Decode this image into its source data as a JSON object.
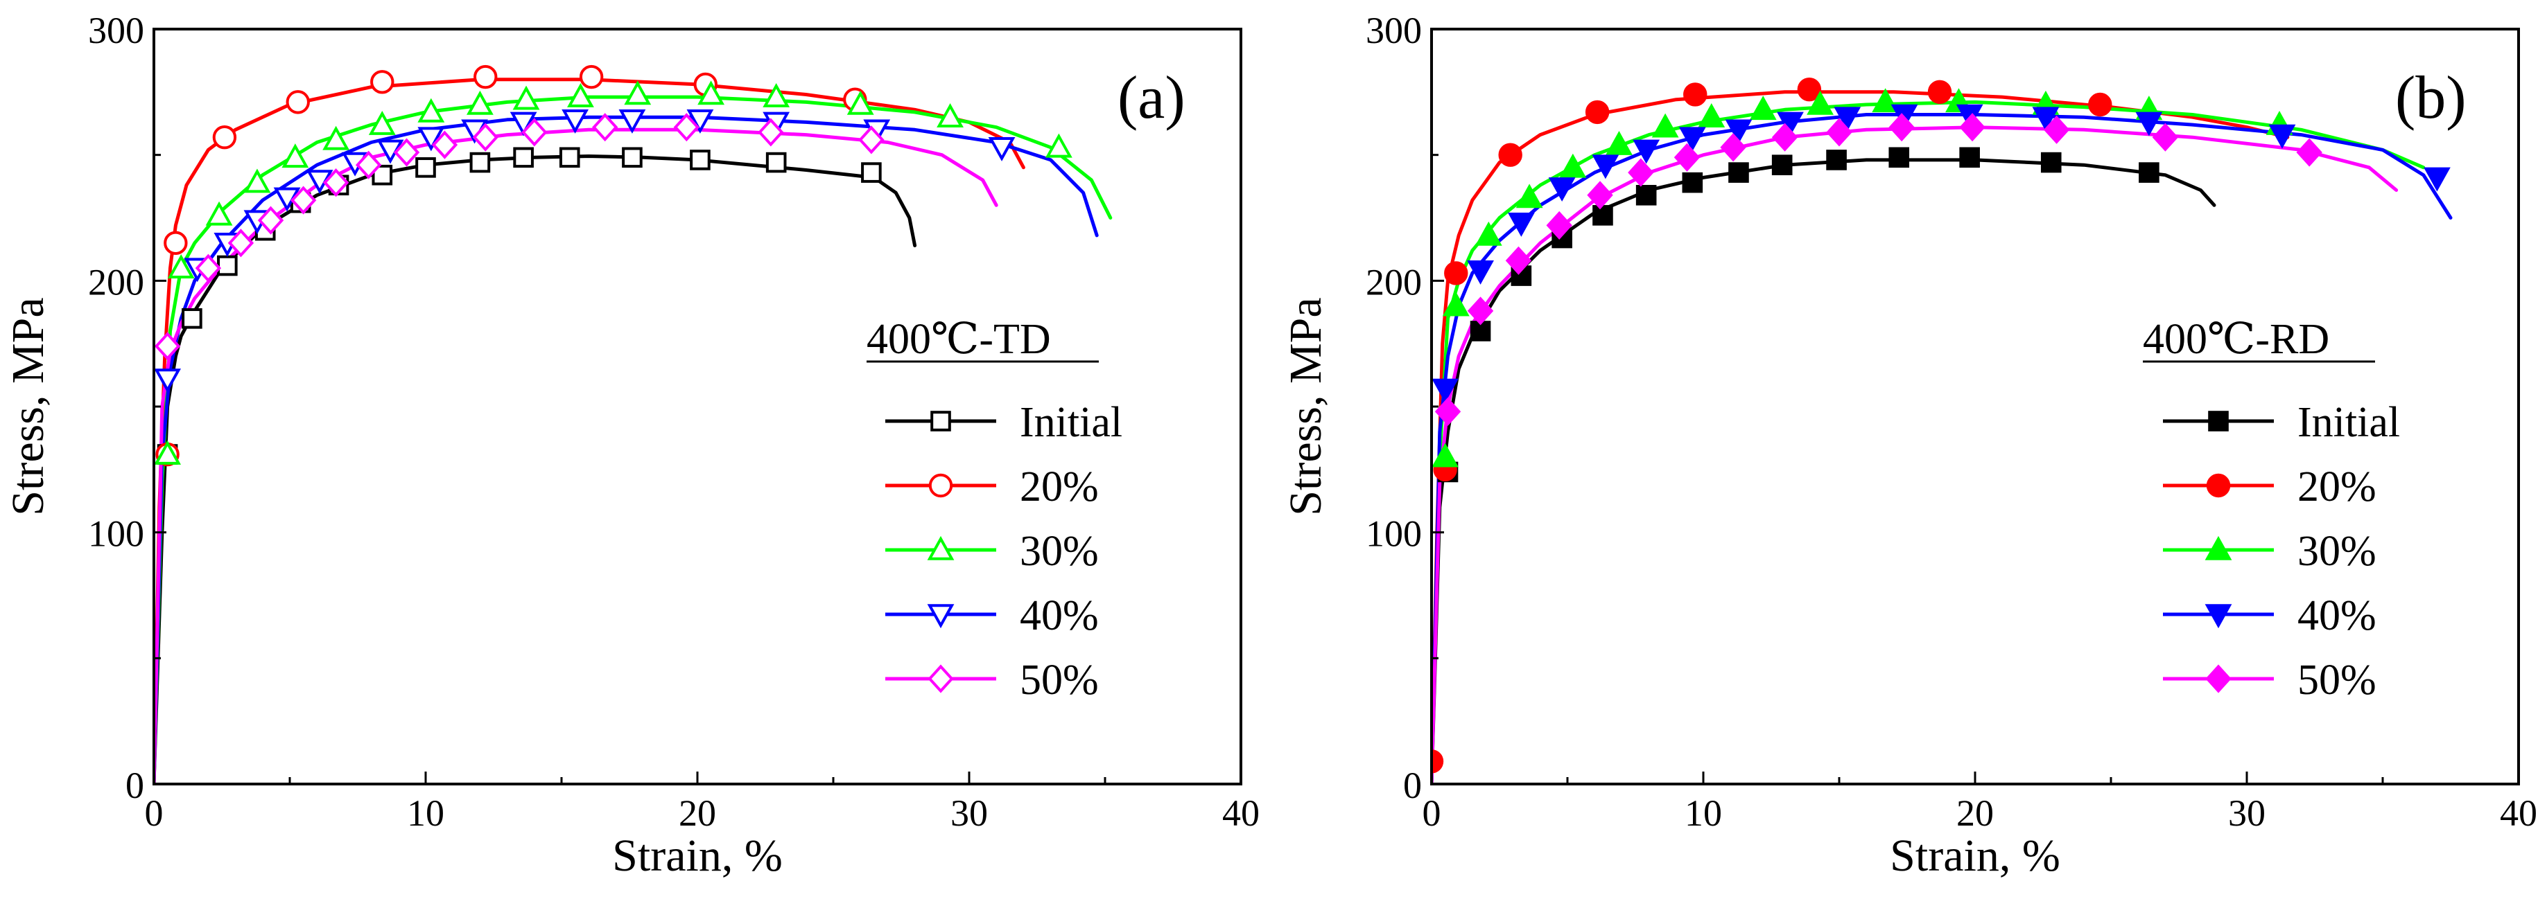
{
  "chart_data": [
    {
      "type": "line",
      "panel_label": "(a)",
      "xlabel": "Strain, %",
      "ylabel": "Stress, MPa",
      "xlim": [
        0,
        40
      ],
      "ylim": [
        0,
        300
      ],
      "x_ticks": [
        "0",
        "10",
        "20",
        "30",
        "40"
      ],
      "y_ticks": [
        "0",
        "100",
        "200",
        "300"
      ],
      "legend_title": "400℃-TD",
      "legend_position": "center-right",
      "series": [
        {
          "name": "Initial",
          "color": "#000000",
          "marker": "square",
          "filled": false,
          "x": [
            0,
            0.3,
            0.5,
            0.8,
            1.0,
            1.5,
            2.5,
            4,
            6,
            8,
            10,
            12,
            14,
            16,
            18,
            20,
            22,
            24,
            26.5,
            27.3,
            27.8,
            28.0
          ],
          "y": [
            0,
            100,
            150,
            170,
            178,
            188,
            205,
            221,
            234,
            242,
            246,
            248,
            249,
            249.5,
            249,
            248,
            246,
            244,
            241,
            235,
            225,
            214
          ],
          "marker_x": [
            0.5,
            1.4,
            2.7,
            4.1,
            5.4,
            6.8,
            8.4,
            10.0,
            12.0,
            13.6,
            15.3,
            17.6,
            20.1,
            22.9,
            26.4
          ],
          "marker_y": [
            131,
            185,
            206,
            220,
            231,
            238,
            242,
            245,
            247,
            249,
            249,
            249,
            248,
            247,
            243
          ]
        },
        {
          "name": "20%",
          "color": "#ff0000",
          "marker": "circle",
          "filled": false,
          "x": [
            0,
            0.2,
            0.4,
            0.6,
            0.8,
            1.2,
            2,
            3,
            5,
            8,
            12,
            16,
            20,
            24,
            28,
            30,
            31.5,
            32.0
          ],
          "y": [
            0,
            110,
            170,
            205,
            222,
            238,
            252,
            260,
            270,
            277,
            280,
            280,
            278,
            274,
            268,
            263,
            255,
            245
          ],
          "marker_x": [
            0.5,
            0.8,
            2.6,
            5.3,
            8.4,
            12.2,
            16.1,
            20.3,
            25.8
          ],
          "marker_y": [
            131,
            215,
            257,
            271,
            279,
            281,
            281,
            278,
            272
          ]
        },
        {
          "name": "30%",
          "color": "#00ff00",
          "marker": "triangle-up",
          "filled": false,
          "x": [
            0,
            0.3,
            0.6,
            1.0,
            1.5,
            2.5,
            4,
            6,
            8,
            10,
            13,
            16,
            20,
            24,
            28,
            31,
            33,
            34.5,
            35.2
          ],
          "y": [
            0,
            120,
            180,
            205,
            215,
            228,
            242,
            255,
            262,
            267,
            271,
            273,
            273,
            271,
            267,
            261,
            253,
            240,
            225
          ],
          "marker_x": [
            0.5,
            1.0,
            2.4,
            3.8,
            5.2,
            6.7,
            8.4,
            10.2,
            12.0,
            13.7,
            15.7,
            17.8,
            20.5,
            22.9,
            26.0,
            29.3,
            33.3
          ],
          "marker_y": [
            131,
            205,
            226,
            239,
            249,
            256,
            262,
            267,
            270,
            272,
            273,
            274,
            274,
            273,
            270,
            265,
            253
          ]
        },
        {
          "name": "40%",
          "color": "#0000ff",
          "marker": "triangle-down",
          "filled": false,
          "x": [
            0,
            0.3,
            0.6,
            1.0,
            1.5,
            2.5,
            4,
            6,
            8,
            10,
            13,
            16,
            20,
            24,
            28,
            31,
            33,
            34.2,
            34.7
          ],
          "y": [
            0,
            130,
            165,
            185,
            200,
            215,
            232,
            246,
            255,
            260,
            264,
            265,
            265,
            263,
            260,
            255,
            248,
            235,
            218
          ],
          "marker_x": [
            0.5,
            1.6,
            2.7,
            3.8,
            4.9,
            6.1,
            7.4,
            8.7,
            10.2,
            11.8,
            13.6,
            15.5,
            17.6,
            20.1,
            22.9,
            26.6,
            31.2
          ],
          "marker_y": [
            161,
            205,
            215,
            224,
            233,
            240,
            247,
            252,
            257,
            260,
            263,
            264,
            264,
            264,
            263,
            260,
            253
          ]
        },
        {
          "name": "50%",
          "color": "#ff00ff",
          "marker": "diamond",
          "filled": false,
          "x": [
            0,
            0.3,
            0.6,
            1.0,
            1.5,
            2.5,
            4,
            6,
            8,
            10,
            13,
            16,
            20,
            24,
            27,
            29,
            30.5,
            31.0
          ],
          "y": [
            0,
            150,
            172,
            183,
            193,
            206,
            222,
            238,
            249,
            254,
            258,
            260,
            260,
            258,
            255,
            250,
            240,
            230
          ],
          "marker_x": [
            0.5,
            2.0,
            3.2,
            4.3,
            5.5,
            6.7,
            7.9,
            9.3,
            10.7,
            12.2,
            14.0,
            16.6,
            19.6,
            22.7,
            26.4
          ],
          "marker_y": [
            174,
            205,
            215,
            224,
            232,
            239,
            246,
            251,
            254,
            257,
            259,
            261,
            261,
            259,
            256
          ]
        }
      ]
    },
    {
      "type": "line",
      "panel_label": "(b)",
      "xlabel": "Strain, %",
      "ylabel": "Stress, MPa",
      "xlim": [
        0,
        40
      ],
      "ylim": [
        0,
        300
      ],
      "x_ticks": [
        "0",
        "10",
        "20",
        "30",
        "40"
      ],
      "y_ticks": [
        "0",
        "100",
        "200",
        "300"
      ],
      "legend_title": "400℃-RD",
      "legend_position": "center-right",
      "series": [
        {
          "name": "Initial",
          "color": "#000000",
          "marker": "square",
          "filled": true,
          "x": [
            0,
            0.3,
            0.6,
            1.0,
            1.5,
            2.5,
            4,
            6,
            8,
            10,
            13,
            16,
            20,
            24,
            27,
            28.3,
            28.8
          ],
          "y": [
            0,
            110,
            140,
            165,
            178,
            196,
            212,
            227,
            236,
            241,
            246,
            248,
            248,
            246,
            242,
            236,
            230
          ],
          "marker_x": [
            0.6,
            1.8,
            3.3,
            4.8,
            6.3,
            7.9,
            9.6,
            11.3,
            12.9,
            14.9,
            17.2,
            19.8,
            22.8,
            26.4
          ],
          "marker_y": [
            124,
            180,
            202,
            217,
            226,
            234,
            239,
            243,
            246,
            248,
            249,
            249,
            247,
            243
          ]
        },
        {
          "name": "20%",
          "color": "#ff0000",
          "marker": "circle",
          "filled": true,
          "x": [
            0,
            0.2,
            0.4,
            0.6,
            1.0,
            1.5,
            2.5,
            4,
            6,
            9,
            13,
            17,
            21,
            25,
            28,
            30,
            31.5
          ],
          "y": [
            0,
            100,
            175,
            200,
            218,
            232,
            247,
            258,
            266,
            272,
            275,
            275,
            273,
            269,
            265,
            261,
            257
          ],
          "marker_x": [
            0.0,
            0.5,
            0.9,
            2.9,
            6.1,
            9.7,
            13.9,
            18.7,
            24.6
          ],
          "marker_y": [
            9,
            125,
            203,
            250,
            267,
            274,
            276,
            275,
            270
          ]
        },
        {
          "name": "30%",
          "color": "#00ff00",
          "marker": "triangle-up",
          "filled": true,
          "x": [
            0,
            0.3,
            0.6,
            1.0,
            1.5,
            2.5,
            4,
            6,
            8,
            10,
            13,
            16,
            20,
            24,
            28,
            32,
            35.0,
            36.5
          ],
          "y": [
            0,
            130,
            185,
            200,
            212,
            225,
            238,
            250,
            258,
            263,
            268,
            270,
            271,
            269,
            266,
            260,
            252,
            245
          ],
          "marker_x": [
            0.5,
            0.9,
            2.1,
            3.6,
            5.2,
            6.9,
            8.6,
            10.3,
            12.2,
            14.3,
            16.7,
            19.4,
            22.6,
            26.4,
            31.2
          ],
          "marker_y": [
            130,
            190,
            218,
            233,
            245,
            254,
            261,
            265,
            268,
            270,
            271,
            271,
            270,
            268,
            262
          ]
        },
        {
          "name": "40%",
          "color": "#0000ff",
          "marker": "triangle-down",
          "filled": true,
          "x": [
            0,
            0.3,
            0.6,
            1.0,
            1.5,
            2.5,
            4,
            6,
            8,
            10,
            13,
            16,
            20,
            24,
            28,
            32,
            35,
            36.5,
            37.5
          ],
          "y": [
            0,
            140,
            170,
            190,
            203,
            216,
            230,
            243,
            252,
            258,
            263,
            266,
            266,
            265,
            262,
            258,
            252,
            242,
            225
          ],
          "marker_x": [
            0.5,
            1.8,
            3.3,
            4.8,
            6.4,
            7.9,
            9.6,
            11.3,
            13.2,
            15.3,
            17.4,
            19.8,
            22.6,
            26.4,
            31.3,
            37.0
          ],
          "marker_y": [
            157,
            204,
            223,
            237,
            246,
            252,
            257,
            260,
            263,
            265,
            266,
            266,
            265,
            263,
            258,
            241
          ]
        },
        {
          "name": "50%",
          "color": "#ff00ff",
          "marker": "diamond",
          "filled": true,
          "x": [
            0,
            0.3,
            0.6,
            1.0,
            1.5,
            2.5,
            4,
            6,
            8,
            10,
            13,
            16,
            20,
            24,
            28,
            32,
            34.5,
            35.5
          ],
          "y": [
            0,
            120,
            150,
            170,
            183,
            198,
            215,
            232,
            243,
            250,
            257,
            260,
            261,
            260,
            257,
            252,
            245,
            236
          ],
          "marker_x": [
            0.6,
            1.8,
            3.2,
            4.7,
            6.2,
            7.7,
            9.4,
            11.1,
            13.0,
            15.0,
            17.3,
            19.9,
            23.0,
            27.0,
            32.3
          ],
          "marker_y": [
            148,
            188,
            208,
            222,
            234,
            243,
            249,
            253,
            257,
            259,
            261,
            261,
            260,
            257,
            251
          ]
        }
      ]
    }
  ]
}
